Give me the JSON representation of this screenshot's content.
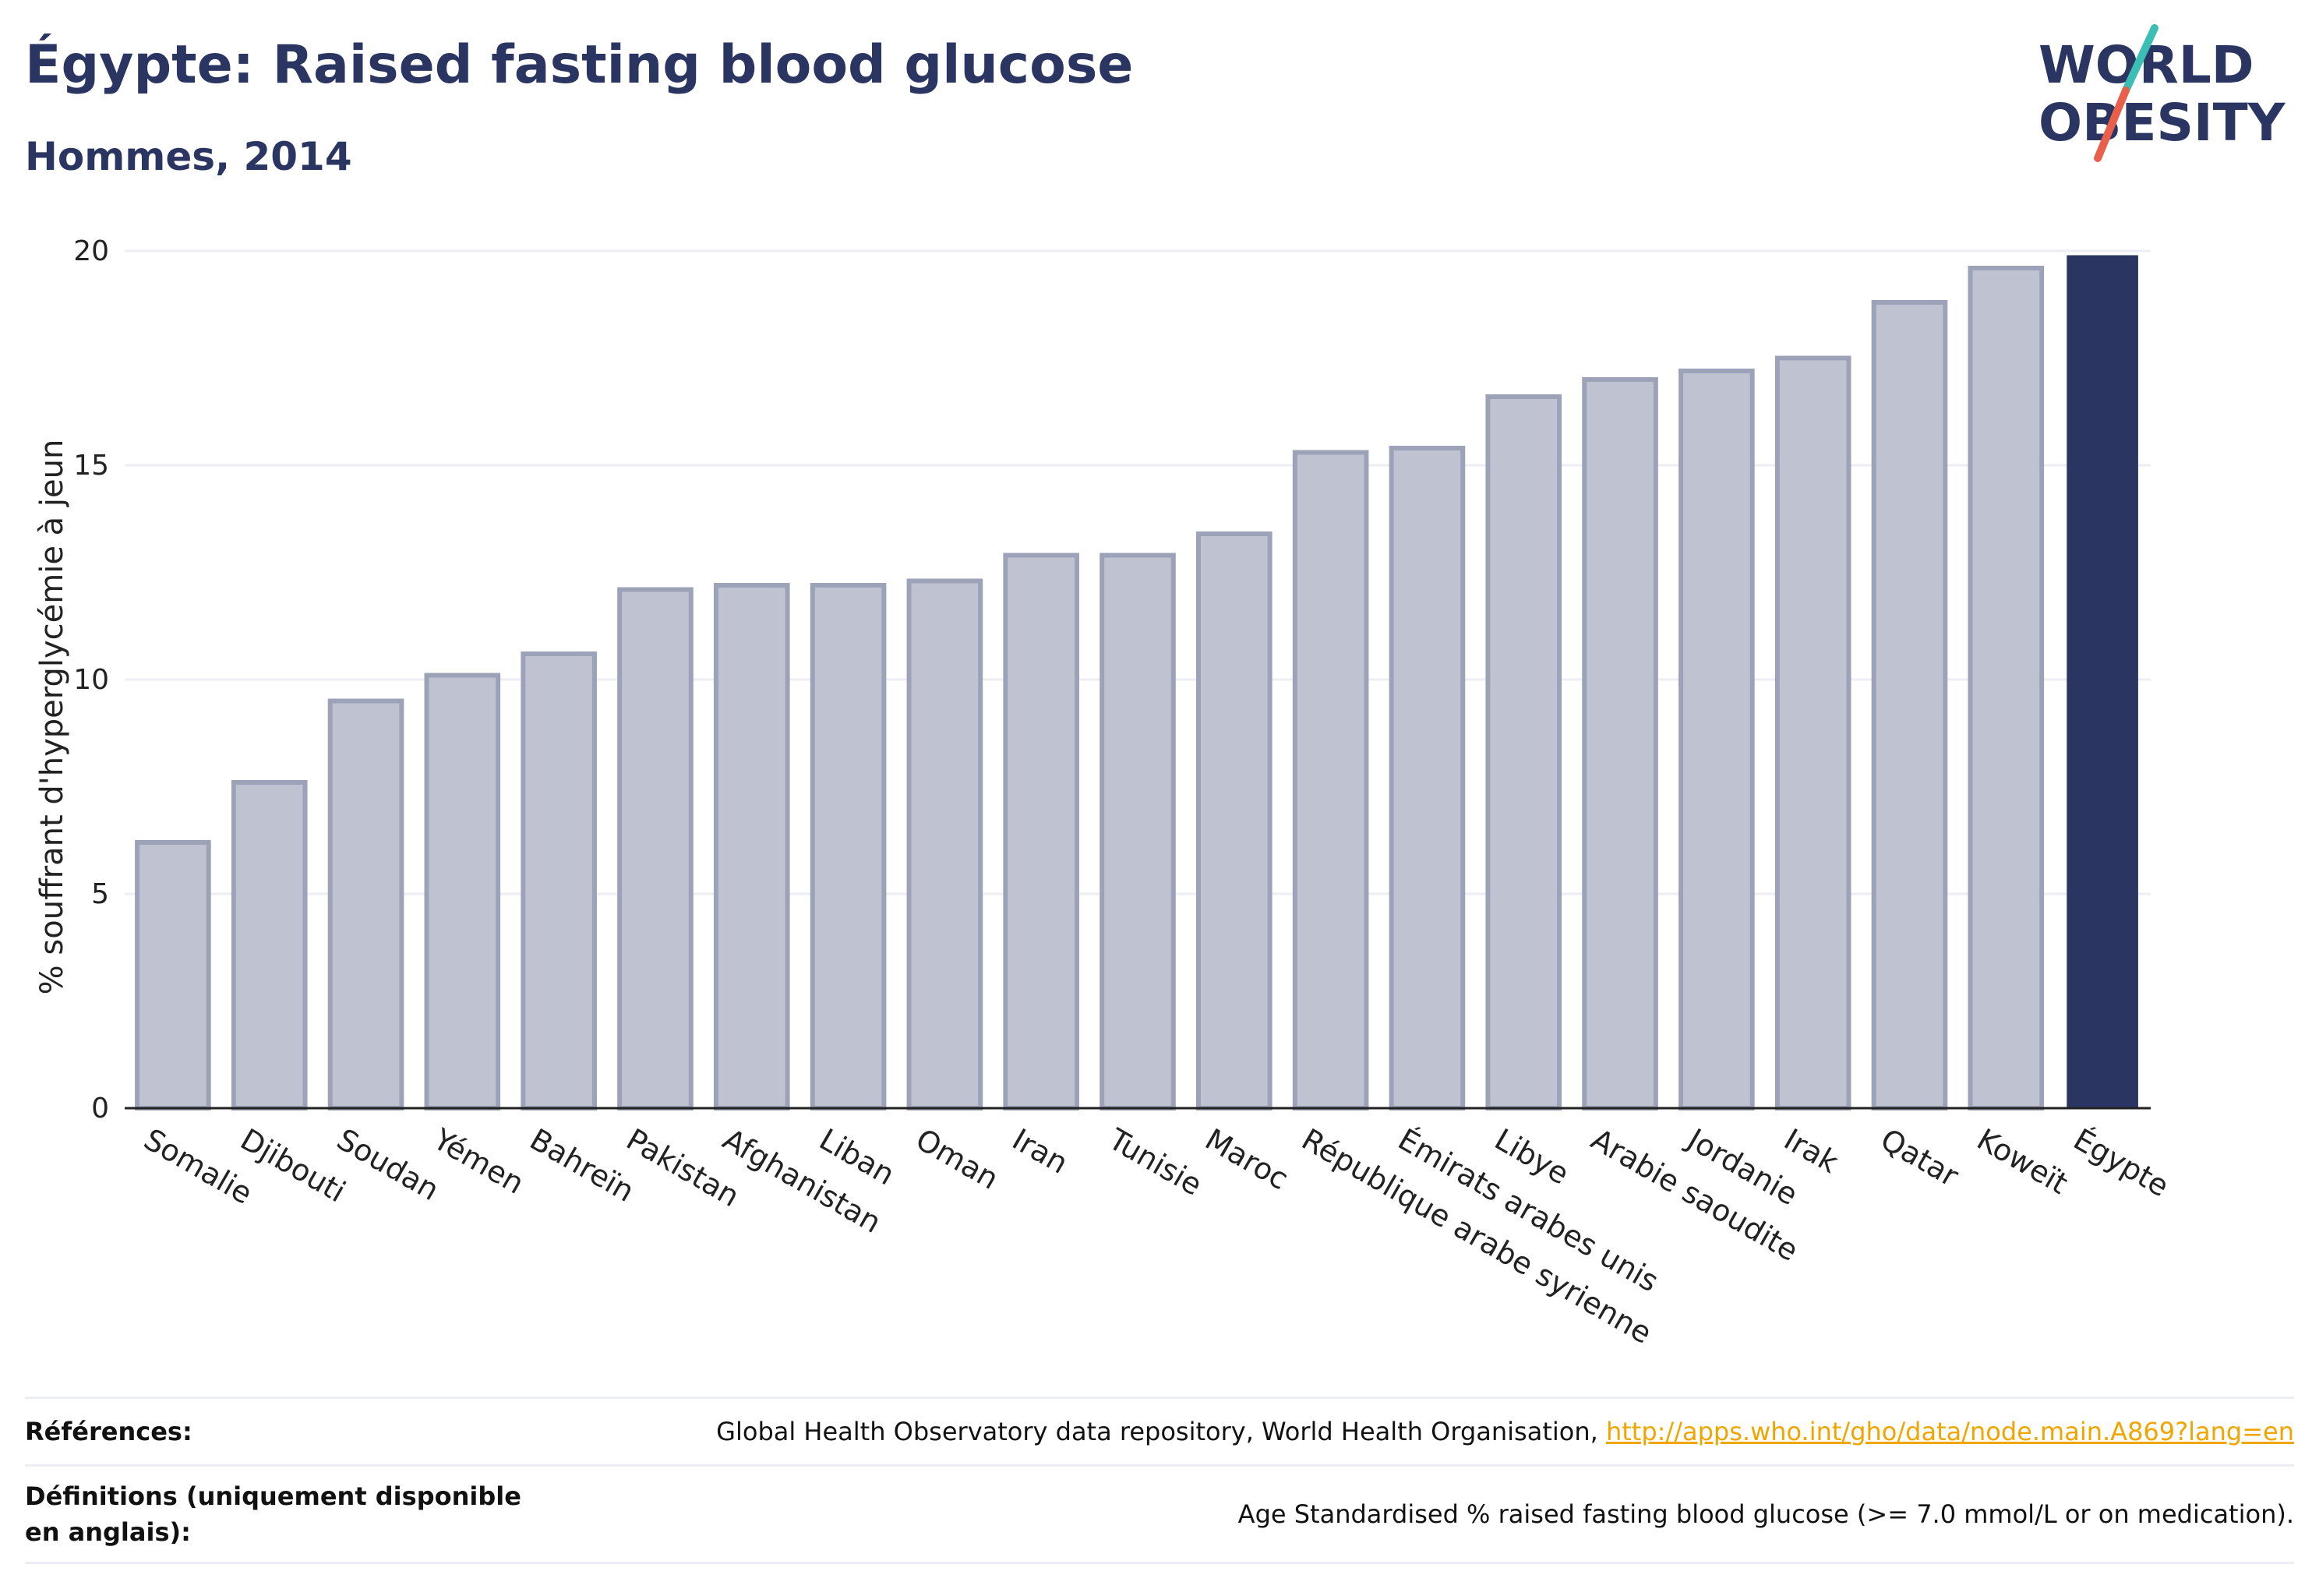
{
  "header": {
    "title": "Égypte: Raised fasting blood glucose",
    "subtitle": "Hommes, 2014"
  },
  "logo": {
    "line1": "WORLD",
    "line2": "OBESITY"
  },
  "chart_data": {
    "type": "bar",
    "ylabel": "% souffrant d'hyperglycémie à jeun",
    "ylim": [
      0,
      20
    ],
    "yticks": [
      0,
      5,
      10,
      15,
      20
    ],
    "grid": true,
    "categories": [
      "Somalie",
      "Djibouti",
      "Soudan",
      "Yémen",
      "Bahreïn",
      "Pakistan",
      "Afghanistan",
      "Liban",
      "Oman",
      "Iran",
      "Tunisie",
      "Maroc",
      "République arabe syrienne",
      "Émirats arabes unis",
      "Libye",
      "Arabie saoudite",
      "Jordanie",
      "Irak",
      "Qatar",
      "Koweït",
      "Égypte"
    ],
    "values": [
      6.2,
      7.6,
      9.5,
      10.1,
      10.6,
      12.1,
      12.2,
      12.2,
      12.3,
      12.9,
      12.9,
      13.4,
      15.3,
      15.4,
      16.6,
      17.0,
      17.2,
      17.5,
      18.8,
      19.6,
      19.9
    ],
    "highlight": "Égypte",
    "colors": {
      "bar": "#bfc3d1",
      "bar_border": "#9ca2b8",
      "highlight": "#2a3561",
      "grid": "#eceef4",
      "axis": "#222222"
    }
  },
  "footer": {
    "references_label": "Références:",
    "references_text": "Global Health Observatory data repository, World Health Organisation,",
    "references_link": "http://apps.who.int/gho/data/node.main.A869?lang=en",
    "definitions_label": "Définitions (uniquement disponible en anglais):",
    "definitions_text": "Age Standardised % raised fasting blood glucose (>= 7.0 mmol/L or on medication)."
  }
}
